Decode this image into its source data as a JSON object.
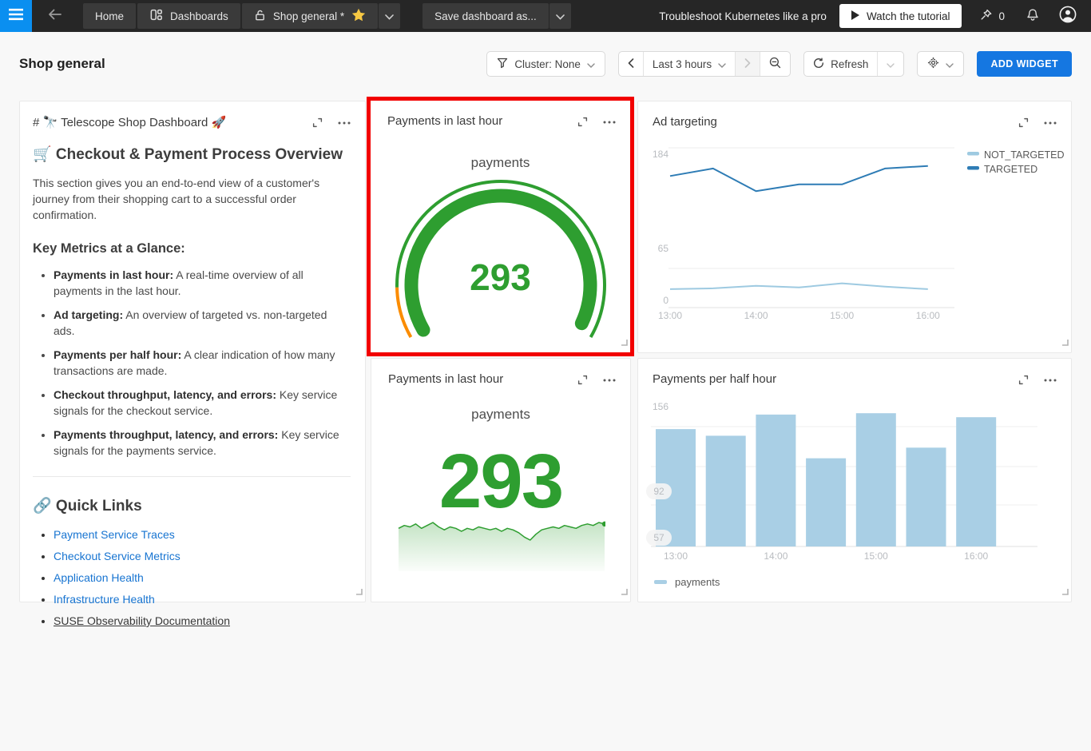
{
  "navbar": {
    "tabs": [
      {
        "label": "Home"
      },
      {
        "label": "Dashboards"
      }
    ],
    "dashboard_tab": {
      "label": "Shop general *"
    },
    "save_button": "Save dashboard as...",
    "promo_text": "Troubleshoot Kubernetes like a pro",
    "watch_button": "Watch the tutorial",
    "pin_count": "0"
  },
  "header": {
    "title": "Shop general",
    "cluster_filter": "Cluster: None",
    "time_range": "Last 3 hours",
    "refresh_label": "Refresh",
    "add_widget": "ADD WIDGET"
  },
  "widgets": {
    "markdown": {
      "title": "# 🔭 Telescope Shop Dashboard 🚀",
      "heading": "🛒 Checkout & Payment Process Overview",
      "intro": "This section gives you an end-to-end view of a customer's journey from their shopping cart to a successful order confirmation.",
      "metrics_heading": "Key Metrics at a Glance:",
      "metrics": [
        {
          "term": "Payments in last hour:",
          "desc": " A real-time overview of all payments in the last hour."
        },
        {
          "term": "Ad targeting:",
          "desc": " An overview of targeted vs. non-targeted ads."
        },
        {
          "term": "Payments per half hour:",
          "desc": " A clear indication of how many transactions are made."
        },
        {
          "term": "Checkout throughput, latency, and errors:",
          "desc": " Key service signals for the checkout service."
        },
        {
          "term": "Payments throughput, latency, and errors:",
          "desc": " Key service signals for the payments service."
        }
      ],
      "links_heading": "🔗 Quick Links",
      "links": [
        {
          "label": "Payment Service Traces"
        },
        {
          "label": "Checkout Service Metrics"
        },
        {
          "label": "Application Health"
        },
        {
          "label": "Infrastructure Health"
        },
        {
          "label": "SUSE Observability Documentation"
        }
      ]
    },
    "gauge": {
      "title": "Payments in last hour",
      "highlighted": true
    },
    "ad_targeting": {
      "title": "Ad targeting"
    },
    "number": {
      "title": "Payments in last hour"
    },
    "bars": {
      "title": "Payments per half hour"
    }
  },
  "chart_data": [
    {
      "id": "gauge-payments",
      "type": "gauge",
      "title": "payments",
      "value": 293,
      "value_color": "#2e9e30",
      "segments": [
        {
          "color": "#fb8c00",
          "span": 0.12
        },
        {
          "color": "#2e9e30",
          "span": 0.88
        }
      ],
      "progress": {
        "color": "#2e9e30",
        "fraction": 0.98
      }
    },
    {
      "id": "ad-targeting",
      "type": "line",
      "x": [
        "13:00",
        "13:30",
        "14:00",
        "14:30",
        "15:00",
        "15:30",
        "16:00"
      ],
      "x_tick_labels": [
        "13:00",
        "14:00",
        "15:00",
        "16:00"
      ],
      "yticks": [
        0,
        65,
        184
      ],
      "ylim": [
        0,
        184
      ],
      "legend_position": "right",
      "series": [
        {
          "name": "NOT_TARGETED",
          "color": "#9ecae1",
          "values": [
            22,
            23,
            26,
            24,
            29,
            25,
            22
          ]
        },
        {
          "name": "TARGETED",
          "color": "#2e7cb5",
          "values": [
            157,
            166,
            139,
            147,
            147,
            166,
            169
          ]
        }
      ]
    },
    {
      "id": "number-payments",
      "type": "number+sparkline",
      "label": "payments",
      "value": 293,
      "color": "#2e9e30",
      "sparkline": [
        290,
        292,
        291,
        293,
        290,
        292,
        294,
        291,
        289,
        291,
        290,
        288,
        290,
        289,
        291,
        290,
        289,
        290,
        288,
        290,
        289,
        287,
        284,
        282,
        286,
        289,
        290,
        291,
        290,
        292,
        291,
        290,
        292,
        293,
        292,
        294,
        293
      ]
    },
    {
      "id": "payments-per-half-hour",
      "type": "bar",
      "categories": [
        "13:00",
        "13:30",
        "14:00",
        "14:30",
        "15:00",
        "15:30",
        "16:00"
      ],
      "values": [
        139,
        134,
        150,
        117,
        151,
        125,
        148
      ],
      "x_tick_labels": [
        "13:00",
        "14:00",
        "15:00",
        "16:00"
      ],
      "yticks": [
        57,
        92,
        156
      ],
      "ylim": [
        50,
        160
      ],
      "bar_color": "#a9cfe5",
      "legend": [
        {
          "name": "payments",
          "color": "#a9cfe5"
        }
      ]
    }
  ],
  "colors": {
    "accent_blue": "#1577e1",
    "menu_blue": "#0a8ff0",
    "green": "#2e9e30",
    "orange": "#fb8c00",
    "star_gold": "#f7c843",
    "highlight_red": "#f20000"
  },
  "icons": [
    "hamburger-icon",
    "arrow-left-icon",
    "dashboards-grid-icon",
    "unlock-icon",
    "star-icon",
    "chevron-down-icon",
    "play-icon",
    "pin-icon",
    "bell-icon",
    "avatar-icon",
    "filter-funnel-icon",
    "chevron-left-icon",
    "chevron-right-icon",
    "zoom-out-icon",
    "refresh-icon",
    "gear-icon",
    "expand-icon",
    "ellipsis-icon",
    "resize-handle-icon"
  ]
}
